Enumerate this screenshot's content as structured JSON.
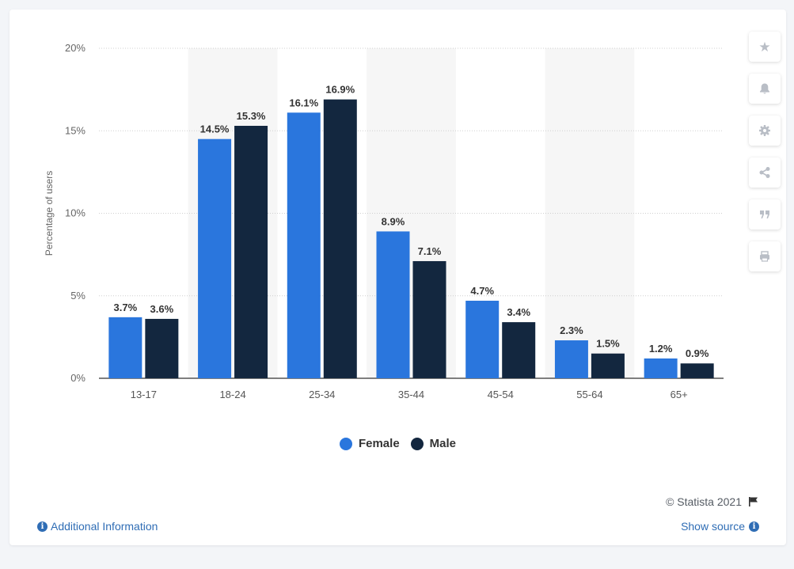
{
  "colors": {
    "female": "#2a76dd",
    "male": "#13273f",
    "band": "#f6f6f6",
    "grid": "#cfcfcf"
  },
  "chart_data": {
    "type": "bar",
    "categories": [
      "13-17",
      "18-24",
      "25-34",
      "35-44",
      "45-54",
      "55-64",
      "65+"
    ],
    "series": [
      {
        "name": "Female",
        "values": [
          3.7,
          14.5,
          16.1,
          8.9,
          4.7,
          2.3,
          1.2
        ],
        "labels": [
          "3.7%",
          "14.5%",
          "16.1%",
          "8.9%",
          "4.7%",
          "2.3%",
          "1.2%"
        ]
      },
      {
        "name": "Male",
        "values": [
          3.6,
          15.3,
          16.9,
          7.1,
          3.4,
          1.5,
          0.9
        ],
        "labels": [
          "3.6%",
          "15.3%",
          "16.9%",
          "7.1%",
          "3.4%",
          "1.5%",
          "0.9%"
        ]
      }
    ],
    "ylabel": "Percentage of users",
    "ylim": [
      0,
      20
    ],
    "yticks": [
      0,
      5,
      10,
      15,
      20
    ],
    "ytick_labels": [
      "0%",
      "5%",
      "10%",
      "15%",
      "20%"
    ],
    "grid": true,
    "legend": "bottom-center"
  },
  "toolbar": [
    {
      "name": "star-icon",
      "glyph": "★"
    },
    {
      "name": "bell-icon",
      "glyph": "🔔︎"
    },
    {
      "name": "gear-icon",
      "glyph": "⚙"
    },
    {
      "name": "share-icon",
      "glyph": "⋖"
    },
    {
      "name": "quote-icon",
      "glyph": "❞"
    },
    {
      "name": "print-icon",
      "glyph": "⎙"
    }
  ],
  "legend_items": [
    "Female",
    "Male"
  ],
  "footer": {
    "copyright": "© Statista 2021",
    "additional_info": "Additional Information",
    "show_source": "Show source"
  }
}
